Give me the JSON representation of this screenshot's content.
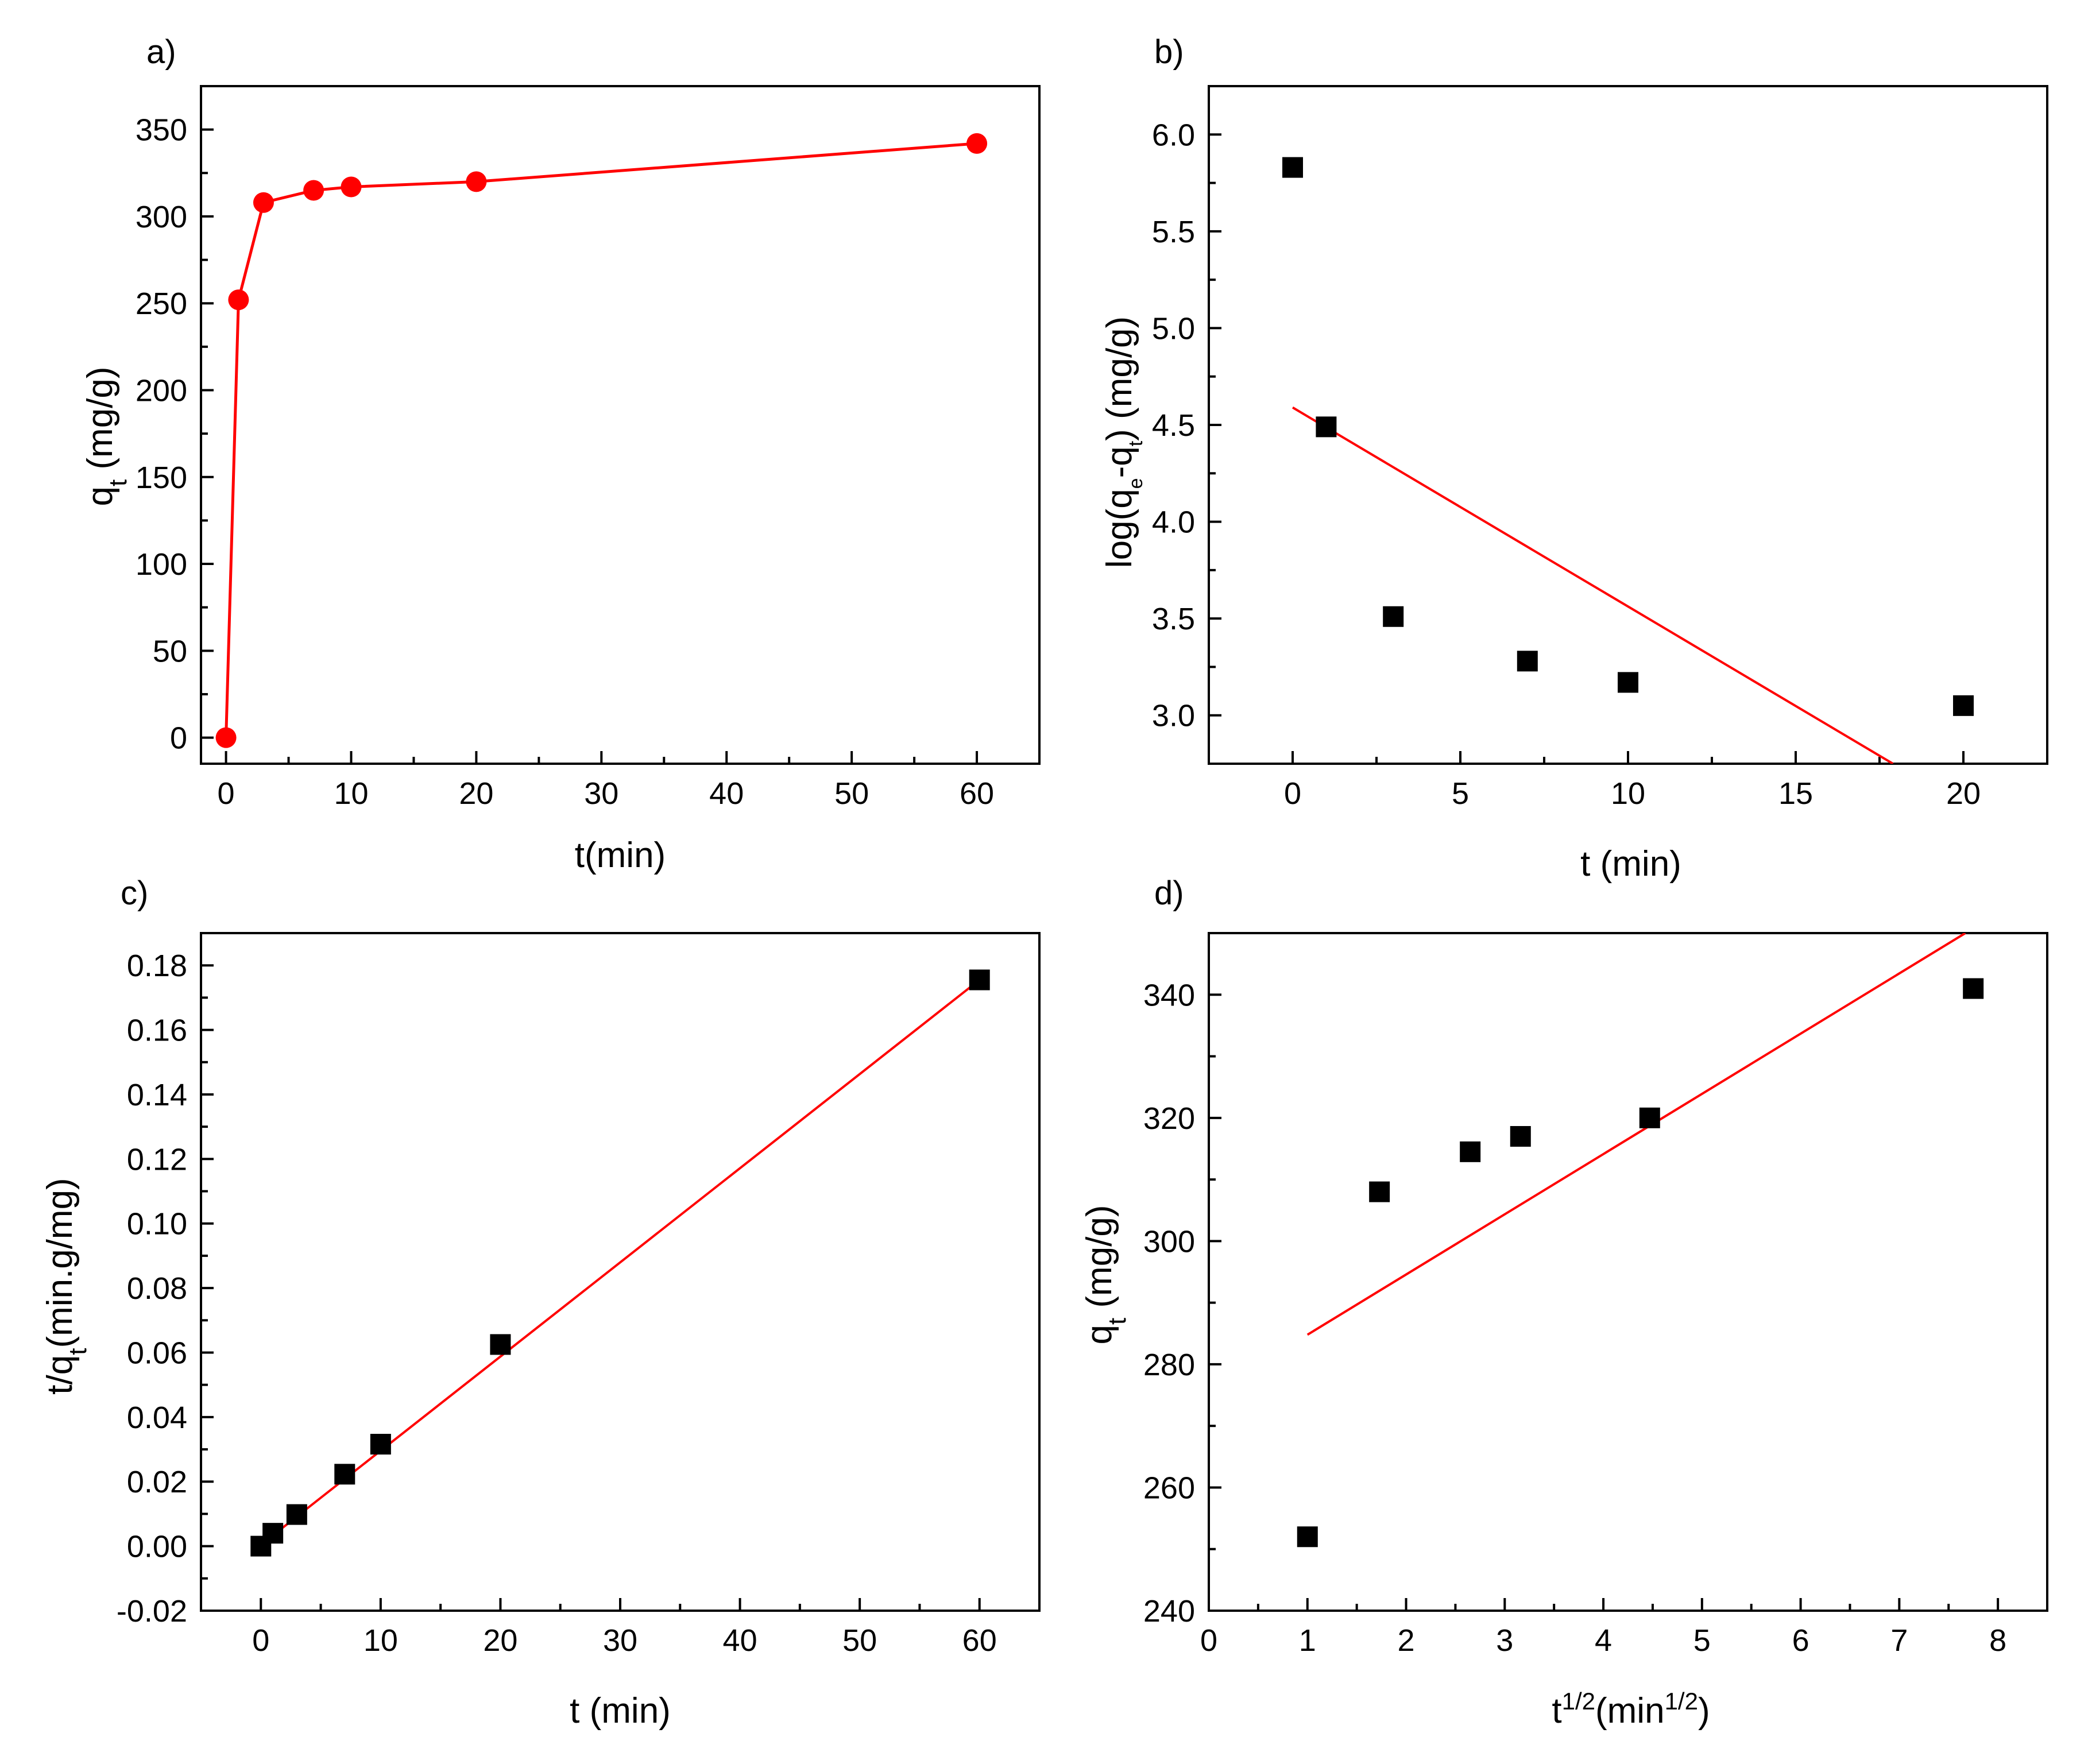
{
  "colors": {
    "accent": "#ff0000",
    "marker_square": "#000000",
    "axis": "#000000"
  },
  "chart_data": [
    {
      "id": "a",
      "panel_label": "a)",
      "type": "line",
      "xlim": [
        -2,
        65
      ],
      "ylim": [
        -15,
        375
      ],
      "xticks": [
        0,
        10,
        20,
        30,
        40,
        50,
        60
      ],
      "yticks": [
        0,
        50,
        100,
        150,
        200,
        250,
        300,
        350
      ],
      "xlabel": "t(min)",
      "ylabel": {
        "base": "q",
        "sub": "t",
        "rest": " (mg/g)"
      },
      "series": [
        {
          "name": "qt",
          "marker": "circle",
          "color": "#ff0000",
          "connect": true,
          "x": [
            0,
            1,
            3,
            7,
            10,
            20,
            60
          ],
          "y": [
            0,
            252,
            308,
            315,
            317,
            320,
            342
          ]
        }
      ]
    },
    {
      "id": "b",
      "panel_label": "b)",
      "type": "scatter",
      "xlim": [
        -2.5,
        22.5
      ],
      "ylim": [
        2.75,
        6.25
      ],
      "xticks": [
        0,
        5,
        10,
        15,
        20
      ],
      "yticks": [
        3.0,
        3.5,
        4.0,
        4.5,
        5.0,
        5.5,
        6.0
      ],
      "xlabel": "t (min)",
      "ylabel": {
        "text": "log(q",
        "sub1": "e",
        "mid": "-q",
        "sub2": "t",
        "rest": ") (mg/g)"
      },
      "series": [
        {
          "name": "log(qe-qt)",
          "marker": "square",
          "color": "#000000",
          "x": [
            0,
            1,
            3,
            7,
            10,
            20
          ],
          "y": [
            5.83,
            4.49,
            3.51,
            3.28,
            3.17,
            3.05
          ]
        }
      ],
      "fit_line": {
        "color": "#ff0000",
        "x": [
          0,
          17.9
        ],
        "y": [
          4.59,
          2.75
        ]
      }
    },
    {
      "id": "c",
      "panel_label": "c)",
      "type": "scatter",
      "xlim": [
        -5,
        65
      ],
      "ylim": [
        -0.02,
        0.19
      ],
      "xticks": [
        0,
        10,
        20,
        30,
        40,
        50,
        60
      ],
      "yticks": [
        -0.02,
        0.0,
        0.02,
        0.04,
        0.06,
        0.08,
        0.1,
        0.12,
        0.14,
        0.16,
        0.18
      ],
      "xlabel": "t (min)",
      "ylabel": {
        "base": "t/q",
        "sub": "t",
        "rest": "(min.g/mg)"
      },
      "series": [
        {
          "name": "t/qt",
          "marker": "square",
          "color": "#000000",
          "x": [
            0,
            1,
            3,
            7,
            10,
            20,
            60
          ],
          "y": [
            0.0,
            0.004,
            0.0098,
            0.0223,
            0.0316,
            0.0625,
            0.1755
          ]
        }
      ],
      "fit_line": {
        "color": "#ff0000",
        "x": [
          0,
          60
        ],
        "y": [
          0.0004,
          0.1755
        ]
      }
    },
    {
      "id": "d",
      "panel_label": "d)",
      "type": "scatter",
      "xlim": [
        0,
        8.5
      ],
      "ylim": [
        240,
        350
      ],
      "xticks": [
        0,
        1,
        2,
        3,
        4,
        5,
        6,
        7,
        8
      ],
      "yticks": [
        240,
        260,
        280,
        300,
        320,
        340
      ],
      "xlabel": {
        "base": "t",
        "sup": "1/2",
        "mid": "(min",
        "sup2": "1/2",
        "rest": ")"
      },
      "ylabel": {
        "base": "q",
        "sub": "t",
        "rest": " (mg/g)"
      },
      "series": [
        {
          "name": "qt",
          "marker": "square",
          "color": "#000000",
          "x": [
            1,
            1.73,
            2.65,
            3.16,
            4.47,
            7.75
          ],
          "y": [
            252,
            308,
            314.5,
            317,
            320,
            341
          ]
        }
      ],
      "fit_line": {
        "color": "#ff0000",
        "x": [
          1,
          7.67
        ],
        "y": [
          284.8,
          350
        ]
      }
    }
  ]
}
